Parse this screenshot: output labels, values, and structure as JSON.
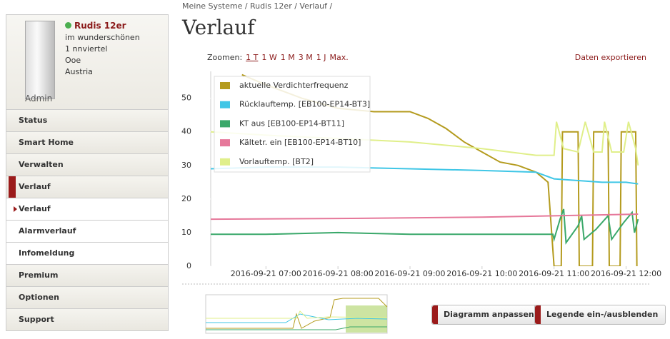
{
  "sidebar": {
    "system_name": "Rudis 12er",
    "address": [
      "im wunderschönen",
      "1 nnviertel",
      "Ooe",
      "Austria"
    ],
    "role": "Admin",
    "menu": [
      "Status",
      "Smart Home",
      "Verwalten",
      "Verlauf",
      "Verlauf",
      "Alarmverlauf",
      "Infomeldung",
      "Premium",
      "Optionen",
      "Support"
    ]
  },
  "breadcrumb": "Meine Systeme / Rudis 12er / Verlauf /",
  "page_title": "Verlauf",
  "zoom": {
    "label": "Zoomen:",
    "links": [
      "1 T",
      "1 W",
      "1 M",
      "3 M",
      "1 J",
      "Max."
    ]
  },
  "export": "Daten exportieren",
  "buttons": [
    "Diagramm anpassen",
    "Legende ein-/ausblenden"
  ],
  "chart_data": {
    "type": "line",
    "xlim": [
      "2016-09-21 06:14",
      "2016-09-21 12:11"
    ],
    "xticks": [
      "2016-09-21 07:00",
      "2016-09-21 08:00",
      "2016-09-21 09:00",
      "2016-09-21 10:00",
      "2016-09-21 11:00",
      "2016-09-21 12:00"
    ],
    "ylim": [
      0,
      58
    ],
    "yticks": [
      0,
      10,
      20,
      30,
      40,
      50
    ],
    "series": [
      {
        "name": "aktuelle Verdichterfrequenz",
        "color": "#b49b1e",
        "x": [
          "2016-09-21 06:40",
          "2016-09-21 07:00",
          "2016-09-21 07:30",
          "2016-09-21 08:00",
          "2016-09-21 08:30",
          "2016-09-21 09:00",
          "2016-09-21 09:15",
          "2016-09-21 09:30",
          "2016-09-21 09:45",
          "2016-09-21 10:00",
          "2016-09-21 10:15",
          "2016-09-21 10:30",
          "2016-09-21 10:45",
          "2016-09-21 10:55",
          "2016-09-21 11:00",
          "2016-09-21 11:06",
          "2016-09-21 11:07",
          "2016-09-21 11:20",
          "2016-09-21 11:21",
          "2016-09-21 11:32",
          "2016-09-21 11:33",
          "2016-09-21 11:45",
          "2016-09-21 11:46",
          "2016-09-21 11:55",
          "2016-09-21 11:56",
          "2016-09-21 12:08",
          "2016-09-21 12:09"
        ],
        "values": [
          57,
          54,
          50,
          47,
          46,
          46,
          44,
          41,
          37,
          34,
          31,
          30,
          28,
          25,
          0,
          0,
          40,
          40,
          0,
          0,
          40,
          40,
          0,
          0,
          40,
          40,
          0
        ]
      },
      {
        "name": "Rücklauftemp. [EB100-EP14-BT3]",
        "color": "#3fc6e6",
        "x": [
          "2016-09-21 06:14",
          "2016-09-21 07:00",
          "2016-09-21 08:00",
          "2016-09-21 09:00",
          "2016-09-21 10:00",
          "2016-09-21 10:45",
          "2016-09-21 11:00",
          "2016-09-21 11:20",
          "2016-09-21 11:40",
          "2016-09-21 12:00",
          "2016-09-21 12:10"
        ],
        "values": [
          29,
          29.5,
          29.5,
          29,
          28.5,
          28,
          26,
          25.5,
          25,
          25,
          24.5
        ]
      },
      {
        "name": "KT aus [EB100-EP14-BT11]",
        "color": "#3aa86a",
        "x": [
          "2016-09-21 06:14",
          "2016-09-21 07:00",
          "2016-09-21 08:00",
          "2016-09-21 09:00",
          "2016-09-21 10:00",
          "2016-09-21 10:59",
          "2016-09-21 11:00",
          "2016-09-21 11:05",
          "2016-09-21 11:08",
          "2016-09-21 11:10",
          "2016-09-21 11:20",
          "2016-09-21 11:23",
          "2016-09-21 11:25",
          "2016-09-21 11:35",
          "2016-09-21 11:45",
          "2016-09-21 11:48",
          "2016-09-21 11:58",
          "2016-09-21 12:05",
          "2016-09-21 12:07",
          "2016-09-21 12:10"
        ],
        "values": [
          9.5,
          9.5,
          10,
          9.5,
          9.5,
          9.5,
          8,
          14,
          17,
          7,
          12,
          15,
          8,
          11,
          15,
          8,
          13,
          16,
          10,
          14
        ]
      },
      {
        "name": "Kältetr. ein [EB100-EP14-BT10]",
        "color": "#e6789a",
        "x": [
          "2016-09-21 06:14",
          "2016-09-21 08:00",
          "2016-09-21 10:00",
          "2016-09-21 11:00",
          "2016-09-21 12:10"
        ],
        "values": [
          14,
          14.2,
          14.6,
          15,
          15.5
        ]
      },
      {
        "name": "Vorlauftemp. [BT2]",
        "color": "#e0ef8a",
        "x": [
          "2016-09-21 06:14",
          "2016-09-21 07:00",
          "2016-09-21 08:00",
          "2016-09-21 09:00",
          "2016-09-21 10:00",
          "2016-09-21 10:45",
          "2016-09-21 11:00",
          "2016-09-21 11:02",
          "2016-09-21 11:08",
          "2016-09-21 11:20",
          "2016-09-21 11:26",
          "2016-09-21 11:33",
          "2016-09-21 11:40",
          "2016-09-21 11:42",
          "2016-09-21 11:48",
          "2016-09-21 11:58",
          "2016-09-21 12:02",
          "2016-09-21 12:08",
          "2016-09-21 12:10"
        ],
        "values": [
          40,
          39,
          38,
          37,
          35,
          33,
          33,
          43,
          35,
          34,
          43,
          34,
          34,
          43,
          34,
          34,
          43,
          35,
          30
        ]
      }
    ]
  }
}
